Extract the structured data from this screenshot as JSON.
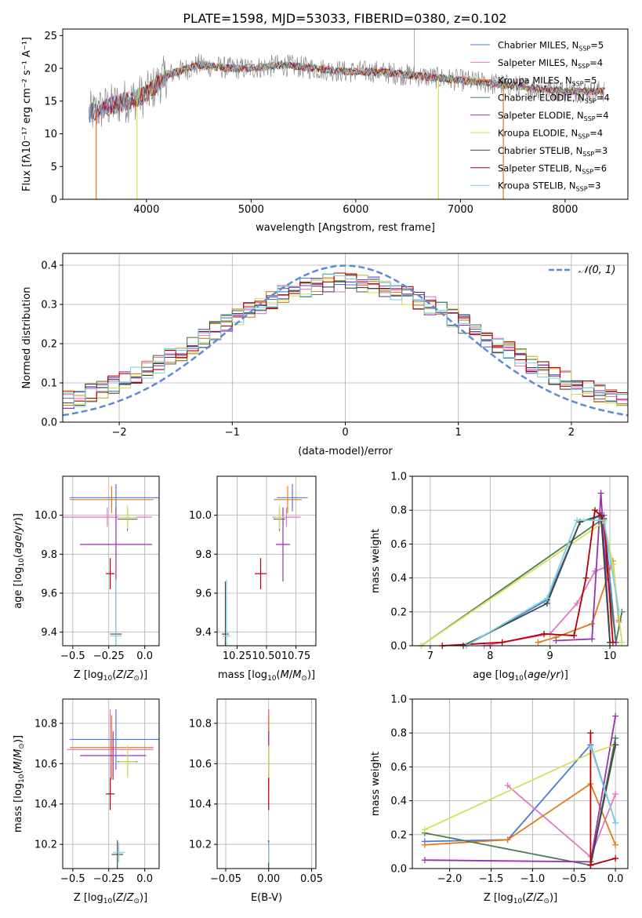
{
  "title": "PLATE=1598, MJD=53033, FIBERID=0380, z=0.102",
  "colors": [
    "#4c78d8",
    "#e377c2",
    "#e07b1f",
    "#4d7b55",
    "#9b30b0",
    "#d4e157",
    "#444444",
    "#b40000",
    "#7dd3dd"
  ],
  "chart_data": [
    {
      "id": "spectrum",
      "type": "line",
      "xlabel": "wavelength [Angstrom, rest frame]",
      "ylabel": "Flux [fλ10⁻¹⁷ erg cm⁻² s⁻¹ A⁻¹]",
      "xlim": [
        3200,
        8600
      ],
      "ylim": [
        0,
        26
      ],
      "xticks": [
        4000,
        5000,
        6000,
        7000,
        8000
      ],
      "yticks": [
        0,
        5,
        10,
        15,
        20,
        25
      ],
      "legend_position": "top-right",
      "data_envelope": {
        "x": [
          3450,
          3600,
          3800,
          4000,
          4200,
          4500,
          4800,
          5000,
          5300,
          5600,
          5900,
          6200,
          6500,
          6800,
          7100,
          7400,
          7700,
          8000,
          8300
        ],
        "y": [
          13,
          14,
          15,
          16,
          19,
          20.5,
          20,
          20,
          20.5,
          20,
          19.5,
          19.5,
          19,
          18.5,
          18,
          17.5,
          17,
          16.5,
          16.5
        ]
      },
      "series": [
        {
          "name": "Chabrier MILES, N_SSP=5",
          "label_main": "Chabrier MILES, N",
          "label_sub": "SSP",
          "label_tail": "=5",
          "color": "#4c78d8"
        },
        {
          "name": "Salpeter MILES, N_SSP=4",
          "label_main": "Salpeter MILES, N",
          "label_sub": "SSP",
          "label_tail": "=4",
          "color": "#e377c2"
        },
        {
          "name": "Kroupa MILES, N_SSP=5",
          "label_main": "Kroupa MILES, N",
          "label_sub": "SSP",
          "label_tail": "=5",
          "color": "#e07b1f"
        },
        {
          "name": "Chabrier ELODIE, N_SSP=4",
          "label_main": "Chabrier ELODIE, N",
          "label_sub": "SSP",
          "label_tail": "=4",
          "color": "#4d7b55"
        },
        {
          "name": "Salpeter ELODIE, N_SSP=4",
          "label_main": "Salpeter ELODIE, N",
          "label_sub": "SSP",
          "label_tail": "=4",
          "color": "#9b30b0"
        },
        {
          "name": "Kroupa ELODIE, N_SSP=4",
          "label_main": "Kroupa ELODIE, N",
          "label_sub": "SSP",
          "label_tail": "=4",
          "color": "#d4e157"
        },
        {
          "name": "Chabrier STELIB, N_SSP=3",
          "label_main": "Chabrier STELIB, N",
          "label_sub": "SSP",
          "label_tail": "=3",
          "color": "#444444"
        },
        {
          "name": "Salpeter STELIB, N_SSP=6",
          "label_main": "Salpeter STELIB, N",
          "label_sub": "SSP",
          "label_tail": "=6",
          "color": "#b40000"
        },
        {
          "name": "Kroupa STELIB, N_SSP=3",
          "label_main": "Kroupa STELIB, N",
          "label_sub": "SSP",
          "label_tail": "=3",
          "color": "#7dd3dd"
        }
      ]
    },
    {
      "id": "residuals",
      "type": "line",
      "xlabel": "(data-model)/error",
      "ylabel": "Normed distribution",
      "xlim": [
        -2.5,
        2.5
      ],
      "ylim": [
        0,
        0.43
      ],
      "xticks": [
        -2,
        -1,
        0,
        1,
        2
      ],
      "yticks": [
        0.0,
        0.1,
        0.2,
        0.3,
        0.4
      ],
      "grid": true,
      "reference_curve": {
        "name": "𝒩(0, 1)",
        "mean": 0,
        "sigma": 1,
        "color": "#5b8bd6"
      },
      "bin_width": 0.1,
      "legend_position": "top-right"
    },
    {
      "id": "age-vs-Z",
      "type": "scatter",
      "xlabel": "Z [log10(Z/Z⊙)]",
      "ylabel": "age  [log10(age/yr)]",
      "xlim": [
        -0.57,
        0.1
      ],
      "ylim": [
        9.33,
        10.2
      ],
      "xticks": [
        -0.5,
        -0.25,
        0.0
      ],
      "yticks": [
        9.4,
        9.6,
        9.8,
        10.0
      ],
      "grid": true,
      "points": [
        {
          "x": -0.2,
          "y": 10.09,
          "xerr": 0.32,
          "yerr": 0.07,
          "color": "#4c78d8"
        },
        {
          "x": -0.26,
          "y": 9.99,
          "xerr": 0.31,
          "yerr": 0.05,
          "color": "#e377c2"
        },
        {
          "x": -0.23,
          "y": 10.08,
          "xerr": 0.29,
          "yerr": 0.07,
          "color": "#e07b1f"
        },
        {
          "x": -0.12,
          "y": 9.98,
          "xerr": 0.07,
          "yerr": 0.06,
          "color": "#4d7b55"
        },
        {
          "x": -0.2,
          "y": 9.85,
          "xerr": 0.25,
          "yerr": 0.19,
          "color": "#9b30b0"
        },
        {
          "x": -0.12,
          "y": 9.99,
          "xerr": 0.06,
          "yerr": 0.06,
          "color": "#d4e157"
        },
        {
          "x": -0.2,
          "y": 9.39,
          "xerr": 0.04,
          "yerr": 0.27,
          "color": "#444444"
        },
        {
          "x": -0.24,
          "y": 9.7,
          "xerr": 0.03,
          "yerr": 0.08,
          "color": "#b40000"
        },
        {
          "x": -0.2,
          "y": 9.38,
          "xerr": 0.04,
          "yerr": 0.29,
          "color": "#7dd3dd"
        }
      ]
    },
    {
      "id": "age-vs-mass",
      "type": "scatter",
      "xlabel": "mass [log10(M/M⊙)]",
      "ylabel": "",
      "xlim": [
        10.08,
        10.92
      ],
      "ylim": [
        9.33,
        10.2
      ],
      "xticks": [
        10.25,
        10.5,
        10.75
      ],
      "yticks": [
        9.4,
        9.6,
        9.8,
        10.0
      ],
      "grid": true,
      "points": [
        {
          "x": 10.72,
          "y": 10.09,
          "xerr": 0.13,
          "yerr": 0.07,
          "color": "#4c78d8"
        },
        {
          "x": 10.67,
          "y": 9.99,
          "xerr": 0.12,
          "yerr": 0.05,
          "color": "#e377c2"
        },
        {
          "x": 10.68,
          "y": 10.08,
          "xerr": 0.12,
          "yerr": 0.07,
          "color": "#e07b1f"
        },
        {
          "x": 10.61,
          "y": 9.98,
          "xerr": 0.05,
          "yerr": 0.06,
          "color": "#4d7b55"
        },
        {
          "x": 10.64,
          "y": 9.85,
          "xerr": 0.06,
          "yerr": 0.19,
          "color": "#9b30b0"
        },
        {
          "x": 10.61,
          "y": 9.99,
          "xerr": 0.04,
          "yerr": 0.06,
          "color": "#d4e157"
        },
        {
          "x": 10.15,
          "y": 9.39,
          "xerr": 0.03,
          "yerr": 0.27,
          "color": "#444444"
        },
        {
          "x": 10.45,
          "y": 9.7,
          "xerr": 0.05,
          "yerr": 0.08,
          "color": "#b40000"
        },
        {
          "x": 10.16,
          "y": 9.38,
          "xerr": 0.03,
          "yerr": 0.29,
          "color": "#7dd3dd"
        }
      ]
    },
    {
      "id": "weight-vs-age",
      "type": "line",
      "xlabel": "age  [log10(age/yr)]",
      "ylabel": "mass weight",
      "xlim": [
        6.7,
        10.3
      ],
      "ylim": [
        0,
        1.0
      ],
      "xticks": [
        7,
        8,
        9,
        10
      ],
      "yticks": [
        0.0,
        0.2,
        0.4,
        0.6,
        0.8,
        1.0
      ],
      "grid": true,
      "series": [
        {
          "color": "#4c78d8",
          "points": [
            [
              7.6,
              0
            ],
            [
              8.95,
              0.27
            ],
            [
              9.5,
              0.73
            ],
            [
              9.9,
              0.77
            ],
            [
              10.1,
              0.02
            ]
          ]
        },
        {
          "color": "#e377c2",
          "points": [
            [
              7.9,
              0
            ],
            [
              9.0,
              0.07
            ],
            [
              9.45,
              0.25
            ],
            [
              9.75,
              0.44
            ],
            [
              10.05,
              0.48
            ],
            [
              10.15,
              0.14
            ]
          ]
        },
        {
          "color": "#e07b1f",
          "points": [
            [
              8.8,
              0.02
            ],
            [
              9.1,
              0.05
            ],
            [
              9.7,
              0.13
            ],
            [
              10.05,
              0.5
            ],
            [
              10.15,
              0.15
            ]
          ]
        },
        {
          "color": "#4d7b55",
          "points": [
            [
              6.85,
              0
            ],
            [
              9.85,
              0.74
            ],
            [
              10.1,
              0.02
            ],
            [
              10.2,
              0.2
            ]
          ]
        },
        {
          "color": "#9b30b0",
          "points": [
            [
              9.1,
              0.03
            ],
            [
              9.7,
              0.04
            ],
            [
              9.85,
              0.9
            ],
            [
              10.0,
              0.02
            ],
            [
              10.1,
              0.02
            ]
          ]
        },
        {
          "color": "#d4e157",
          "points": [
            [
              6.85,
              0
            ],
            [
              9.9,
              0.73
            ],
            [
              10.05,
              0.48
            ],
            [
              10.2,
              0.02
            ]
          ]
        },
        {
          "color": "#444444",
          "points": [
            [
              7.55,
              0
            ],
            [
              8.95,
              0.25
            ],
            [
              9.5,
              0.73
            ],
            [
              9.85,
              0.77
            ],
            [
              10.0,
              0.02
            ]
          ]
        },
        {
          "color": "#b40000",
          "points": [
            [
              7.2,
              0
            ],
            [
              8.2,
              0.02
            ],
            [
              8.9,
              0.07
            ],
            [
              9.4,
              0.06
            ],
            [
              9.6,
              0.4
            ],
            [
              9.75,
              0.8
            ],
            [
              9.9,
              0.75
            ],
            [
              10.05,
              0.02
            ]
          ]
        },
        {
          "color": "#7dd3dd",
          "points": [
            [
              7.6,
              0
            ],
            [
              8.95,
              0.28
            ],
            [
              9.45,
              0.74
            ],
            [
              9.9,
              0.74
            ],
            [
              10.15,
              0.2
            ]
          ]
        }
      ]
    },
    {
      "id": "mass-vs-Z",
      "type": "scatter",
      "xlabel": "Z [log10(Z/Z⊙)]",
      "ylabel": "mass [log10(M/M⊙)]",
      "xlim": [
        -0.57,
        0.1
      ],
      "ylim": [
        10.08,
        10.92
      ],
      "xticks": [
        -0.5,
        -0.25,
        0.0
      ],
      "yticks": [
        10.2,
        10.4,
        10.6,
        10.8
      ],
      "grid": true,
      "points": [
        {
          "x": -0.2,
          "y": 10.72,
          "xerr": 0.32,
          "yerr": 0.15,
          "color": "#4c78d8"
        },
        {
          "x": -0.24,
          "y": 10.67,
          "xerr": 0.3,
          "yerr": 0.2,
          "color": "#e377c2"
        },
        {
          "x": -0.23,
          "y": 10.68,
          "xerr": 0.29,
          "yerr": 0.16,
          "color": "#e07b1f"
        },
        {
          "x": -0.12,
          "y": 10.61,
          "xerr": 0.07,
          "yerr": 0.07,
          "color": "#4d7b55"
        },
        {
          "x": -0.22,
          "y": 10.64,
          "xerr": 0.23,
          "yerr": 0.12,
          "color": "#9b30b0"
        },
        {
          "x": -0.12,
          "y": 10.61,
          "xerr": 0.06,
          "yerr": 0.08,
          "color": "#d4e157"
        },
        {
          "x": -0.19,
          "y": 10.15,
          "xerr": 0.04,
          "yerr": 0.07,
          "color": "#444444"
        },
        {
          "x": -0.24,
          "y": 10.45,
          "xerr": 0.03,
          "yerr": 0.08,
          "color": "#b40000"
        },
        {
          "x": -0.18,
          "y": 10.16,
          "xerr": 0.04,
          "yerr": 0.05,
          "color": "#7dd3dd"
        }
      ]
    },
    {
      "id": "mass-vs-EBV",
      "type": "scatter",
      "xlabel": "E(B-V)",
      "ylabel": "",
      "xlim": [
        -0.06,
        0.055
      ],
      "ylim": [
        10.08,
        10.92
      ],
      "xticks": [
        -0.05,
        0.0,
        0.05
      ],
      "yticks": [
        10.2,
        10.4,
        10.6,
        10.8
      ],
      "grid": true,
      "points": [
        {
          "x": 0,
          "y": 10.72,
          "xerr": 0,
          "yerr": 0.15,
          "color": "#4c78d8"
        },
        {
          "x": 0,
          "y": 10.67,
          "xerr": 0,
          "yerr": 0.2,
          "color": "#e377c2"
        },
        {
          "x": 0,
          "y": 10.68,
          "xerr": 0,
          "yerr": 0.16,
          "color": "#e07b1f"
        },
        {
          "x": 0,
          "y": 10.61,
          "xerr": 0,
          "yerr": 0.07,
          "color": "#4d7b55"
        },
        {
          "x": 0,
          "y": 10.64,
          "xerr": 0,
          "yerr": 0.12,
          "color": "#9b30b0"
        },
        {
          "x": 0,
          "y": 10.61,
          "xerr": 0,
          "yerr": 0.08,
          "color": "#d4e157"
        },
        {
          "x": 0,
          "y": 10.15,
          "xerr": 0,
          "yerr": 0.07,
          "color": "#444444"
        },
        {
          "x": 0,
          "y": 10.45,
          "xerr": 0,
          "yerr": 0.08,
          "color": "#b40000"
        },
        {
          "x": 0,
          "y": 10.16,
          "xerr": 0,
          "yerr": 0.05,
          "color": "#7dd3dd"
        }
      ]
    },
    {
      "id": "weight-vs-Z",
      "type": "line",
      "xlabel": "Z [log10(Z/Z⊙)]",
      "ylabel": "mass weight",
      "xlim": [
        -2.45,
        0.15
      ],
      "ylim": [
        0,
        1.0
      ],
      "xticks": [
        -2.0,
        -1.5,
        -1.0,
        -0.5,
        0.0
      ],
      "yticks": [
        0.0,
        0.2,
        0.4,
        0.6,
        0.8,
        1.0
      ],
      "grid": true,
      "series": [
        {
          "color": "#4c78d8",
          "points": [
            [
              -2.3,
              0.16
            ],
            [
              -1.3,
              0.17
            ],
            [
              -0.3,
              0.73
            ],
            [
              0.0,
              0.27
            ]
          ]
        },
        {
          "color": "#e377c2",
          "points": [
            [
              -1.3,
              0.49
            ],
            [
              -0.3,
              0.07
            ],
            [
              0.0,
              0.44
            ]
          ]
        },
        {
          "color": "#e07b1f",
          "points": [
            [
              -2.3,
              0.14
            ],
            [
              -1.3,
              0.17
            ],
            [
              -0.3,
              0.5
            ],
            [
              0.0,
              0.14
            ]
          ]
        },
        {
          "color": "#4d7b55",
          "points": [
            [
              -2.3,
              0.21
            ],
            [
              -0.3,
              0.02
            ],
            [
              0.0,
              0.77
            ]
          ]
        },
        {
          "color": "#9b30b0",
          "points": [
            [
              -2.3,
              0.05
            ],
            [
              -0.3,
              0.04
            ],
            [
              0.0,
              0.9
            ]
          ]
        },
        {
          "color": "#d4e157",
          "points": [
            [
              -2.3,
              0.23
            ],
            [
              -0.3,
              0.68
            ],
            [
              0.0,
              0.73
            ]
          ]
        },
        {
          "color": "#444444",
          "points": [
            [
              -0.3,
              0.02
            ],
            [
              0.0,
              0.73
            ]
          ]
        },
        {
          "color": "#b40000",
          "points": [
            [
              -0.3,
              0.8
            ],
            [
              -0.3,
              0.02
            ],
            [
              0.0,
              0.06
            ]
          ]
        },
        {
          "color": "#7dd3dd",
          "points": [
            [
              -0.3,
              0.72
            ],
            [
              0.0,
              0.27
            ]
          ]
        }
      ]
    }
  ]
}
